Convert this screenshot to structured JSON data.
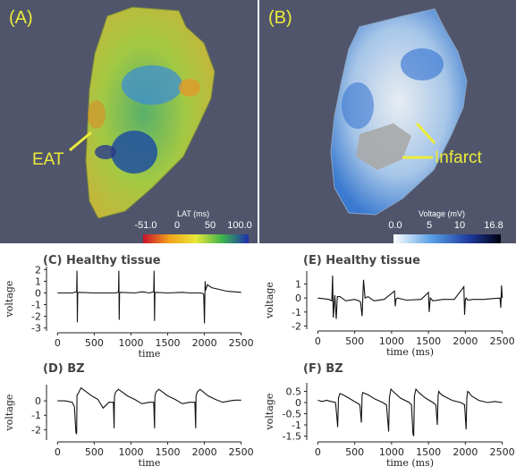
{
  "panel_a": {
    "tag": "(A)",
    "annotation": "EAT",
    "colorbar": {
      "title": "LAT (ms)",
      "ticks": [
        "-51.0",
        "0",
        "50",
        "100.0"
      ]
    }
  },
  "panel_b": {
    "tag": "(B)",
    "annotation": "Infarct",
    "colorbar": {
      "title": "Voltage (mV)",
      "ticks": [
        "0.0",
        "5",
        "10",
        "16.8"
      ]
    }
  },
  "colors": {
    "background_3d": "#50556b",
    "annotation": "#ecec3a",
    "trace": "#111111"
  },
  "chart_data": [
    {
      "id": "C",
      "type": "line",
      "title": "(C) Healthy tissue",
      "xlabel": "time",
      "ylabel": "voltage",
      "xlim": [
        -150,
        2650
      ],
      "ylim": [
        -3.1,
        2.1
      ],
      "xticks": [
        "0",
        "500",
        "1000",
        "1500",
        "2000",
        "2500"
      ],
      "yticks": [
        "2",
        "1",
        "0",
        "-1",
        "-2",
        "-3"
      ],
      "x": [
        0,
        200,
        260,
        265,
        270,
        275,
        290,
        500,
        700,
        800,
        830,
        835,
        840,
        845,
        860,
        1050,
        1150,
        1250,
        1310,
        1315,
        1320,
        1325,
        1340,
        1500,
        1700,
        1800,
        1960,
        1990,
        2000,
        2010,
        2015,
        2040,
        2100,
        2200,
        2300,
        2400,
        2500
      ],
      "y": [
        0,
        0,
        0.1,
        1.9,
        -2.5,
        0,
        0.05,
        0,
        0,
        0,
        0.1,
        1.9,
        -2.3,
        0,
        0.05,
        0,
        0.1,
        0,
        0.1,
        1.9,
        -2.4,
        0,
        0.05,
        0,
        0.05,
        0,
        0,
        -0.1,
        -2.6,
        1.0,
        0.2,
        0.7,
        0.45,
        0.3,
        0.15,
        0.1,
        0.05
      ]
    },
    {
      "id": "D",
      "type": "line",
      "title": "(D) BZ",
      "xlabel": "time",
      "ylabel": "voltage",
      "xlim": [
        -150,
        2650
      ],
      "ylim": [
        -2.6,
        1.0
      ],
      "xticks": [
        "0",
        "500",
        "1000",
        "1500",
        "2000",
        "2500"
      ],
      "yticks": [
        "0",
        "-1",
        "-2"
      ],
      "x": [
        0,
        100,
        200,
        230,
        250,
        260,
        265,
        280,
        320,
        450,
        550,
        620,
        700,
        760,
        770,
        775,
        790,
        830,
        950,
        1050,
        1150,
        1250,
        1310,
        1320,
        1325,
        1340,
        1380,
        1500,
        1600,
        1700,
        1800,
        1870,
        1880,
        1885,
        1900,
        1940,
        2050,
        2150,
        2250,
        2350,
        2420,
        2500
      ],
      "y": [
        0,
        0,
        -0.1,
        -0.4,
        -2.2,
        -2.3,
        0.4,
        0.5,
        0.9,
        0.4,
        0.1,
        -0.5,
        -0.1,
        -0.1,
        -1.9,
        0.3,
        0.6,
        0.8,
        0.35,
        0.1,
        -0.2,
        -0.1,
        -0.1,
        -1.9,
        0.3,
        0.6,
        0.8,
        0.35,
        0.1,
        -0.2,
        -0.1,
        -0.1,
        -1.9,
        0.3,
        0.6,
        0.8,
        0.35,
        0.1,
        -0.1,
        0,
        0.05,
        0.05
      ]
    },
    {
      "id": "E",
      "type": "line",
      "title": "(E) Healthy tissue",
      "xlabel": "time (ms)",
      "ylabel": "voltage",
      "xlim": [
        -150,
        2650
      ],
      "ylim": [
        -2.1,
        1.8
      ],
      "xticks": [
        "0",
        "500",
        "1000",
        "1500",
        "2000",
        "2500"
      ],
      "yticks": [
        "1",
        "0",
        "-1",
        "-2"
      ],
      "x": [
        0,
        150,
        190,
        200,
        210,
        230,
        250,
        265,
        300,
        380,
        500,
        560,
        580,
        600,
        620,
        640,
        680,
        760,
        900,
        1040,
        1050,
        1060,
        1080,
        1200,
        1400,
        1500,
        1510,
        1525,
        1560,
        1700,
        1850,
        1980,
        1990,
        2000,
        2010,
        2030,
        2100,
        2250,
        2350,
        2470,
        2480,
        2490,
        2500
      ],
      "y": [
        0,
        -0.1,
        -0.2,
        1.6,
        -1.4,
        0.2,
        -1.5,
        0.1,
        0.1,
        -0.2,
        -0.1,
        -0.2,
        -0.3,
        -1.3,
        1.3,
        0,
        0.1,
        -0.2,
        -0.1,
        0.5,
        -0.6,
        -0.1,
        0,
        -0.15,
        -0.1,
        0.4,
        -1.0,
        0,
        -0.2,
        -0.1,
        -0.1,
        0.8,
        -1.2,
        -0.1,
        0,
        -0.15,
        -0.1,
        -0.1,
        -0.05,
        0,
        -0.7,
        0.9,
        0
      ]
    },
    {
      "id": "F",
      "type": "line",
      "title": "(F) BZ",
      "xlabel": "time (ms)",
      "ylabel": "voltage",
      "xlim": [
        -150,
        2650
      ],
      "ylim": [
        -1.6,
        0.8
      ],
      "xticks": [
        "0",
        "500",
        "1000",
        "1500",
        "2000",
        "2500"
      ],
      "yticks": [
        "0.5",
        "0",
        "-0.5",
        "-1",
        "-1.5"
      ],
      "x": [
        0,
        60,
        120,
        180,
        240,
        260,
        270,
        280,
        300,
        340,
        420,
        520,
        570,
        590,
        600,
        610,
        640,
        680,
        780,
        880,
        930,
        950,
        960,
        970,
        990,
        1020,
        1120,
        1240,
        1270,
        1290,
        1300,
        1310,
        1330,
        1370,
        1460,
        1560,
        1600,
        1620,
        1630,
        1640,
        1660,
        1700,
        1820,
        1940,
        1990,
        2010,
        2020,
        2030,
        2050,
        2080,
        2180,
        2300,
        2400,
        2500
      ],
      "y": [
        0.1,
        0.05,
        0.1,
        0.05,
        0,
        -0.7,
        -1.1,
        0.2,
        0.4,
        0.35,
        0.2,
        0,
        -0.1,
        -0.9,
        0.3,
        0.45,
        0.4,
        0.35,
        0.15,
        0,
        -0.1,
        -0.9,
        -1.3,
        0.2,
        0.6,
        0.5,
        0.2,
        0,
        -0.1,
        -1.4,
        -1.5,
        0.3,
        0.6,
        0.45,
        0.2,
        0,
        -0.1,
        -1.0,
        0.3,
        0.5,
        0.4,
        0.3,
        0.1,
        0,
        -0.1,
        -1.2,
        0.2,
        0.5,
        0.45,
        0.3,
        0.1,
        0,
        0.05,
        0
      ]
    }
  ]
}
